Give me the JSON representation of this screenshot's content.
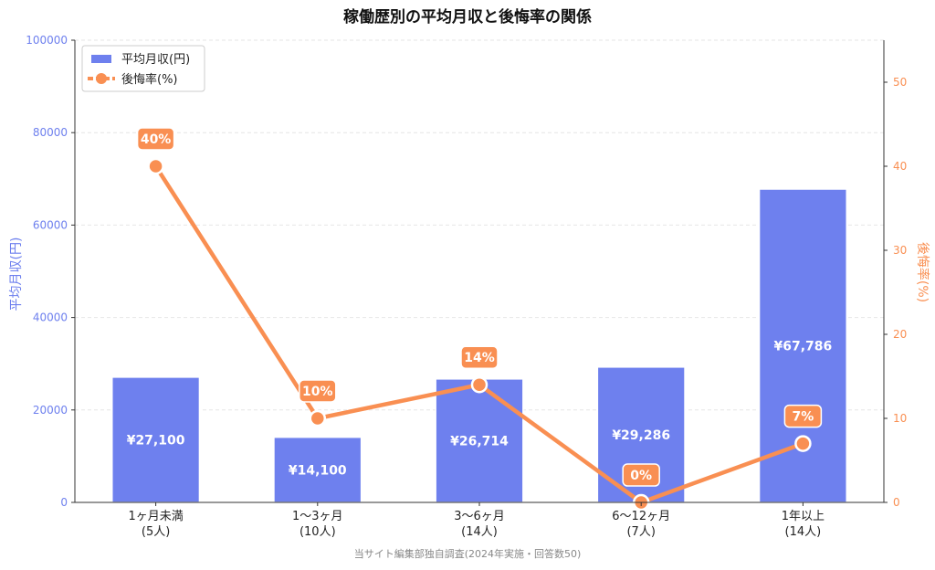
{
  "chart_data": {
    "type": "bar+line",
    "title": "稼働歴別の平均月収と後悔率の関係",
    "categories": [
      {
        "line1": "1ヶ月未満",
        "line2": "(5人)"
      },
      {
        "line1": "1〜3ヶ月",
        "line2": "(10人)"
      },
      {
        "line1": "3〜6ヶ月",
        "line2": "(14人)"
      },
      {
        "line1": "6〜12ヶ月",
        "line2": "(7人)"
      },
      {
        "line1": "1年以上",
        "line2": "(14人)"
      }
    ],
    "series": [
      {
        "name": "平均月収(円)",
        "type": "bar",
        "axis": "left",
        "values": [
          27100,
          14100,
          26714,
          29286,
          67786
        ],
        "labels": [
          "¥27,100",
          "¥14,100",
          "¥26,714",
          "¥29,286",
          "¥67,786"
        ],
        "color": "#6e80ee"
      },
      {
        "name": "後悔率(%)",
        "type": "line",
        "axis": "right",
        "values": [
          40,
          10,
          14,
          0,
          7
        ],
        "labels": [
          "40%",
          "10%",
          "14%",
          "0%",
          "7%"
        ],
        "color": "#f98f52"
      }
    ],
    "ylabel_left": "平均月収(円)",
    "ylabel_right": "後悔率(%)",
    "ylim_left": [
      0,
      100000
    ],
    "ylim_right": [
      0,
      55
    ],
    "yticks_left": [
      "0",
      "20000",
      "40000",
      "60000",
      "80000",
      "100000"
    ],
    "yticks_right": [
      "0",
      "10",
      "20",
      "30",
      "40",
      "50"
    ],
    "grid": true,
    "legend": "top-left",
    "footer": "当サイト編集部独自調査(2024年実施・回答数50)"
  }
}
